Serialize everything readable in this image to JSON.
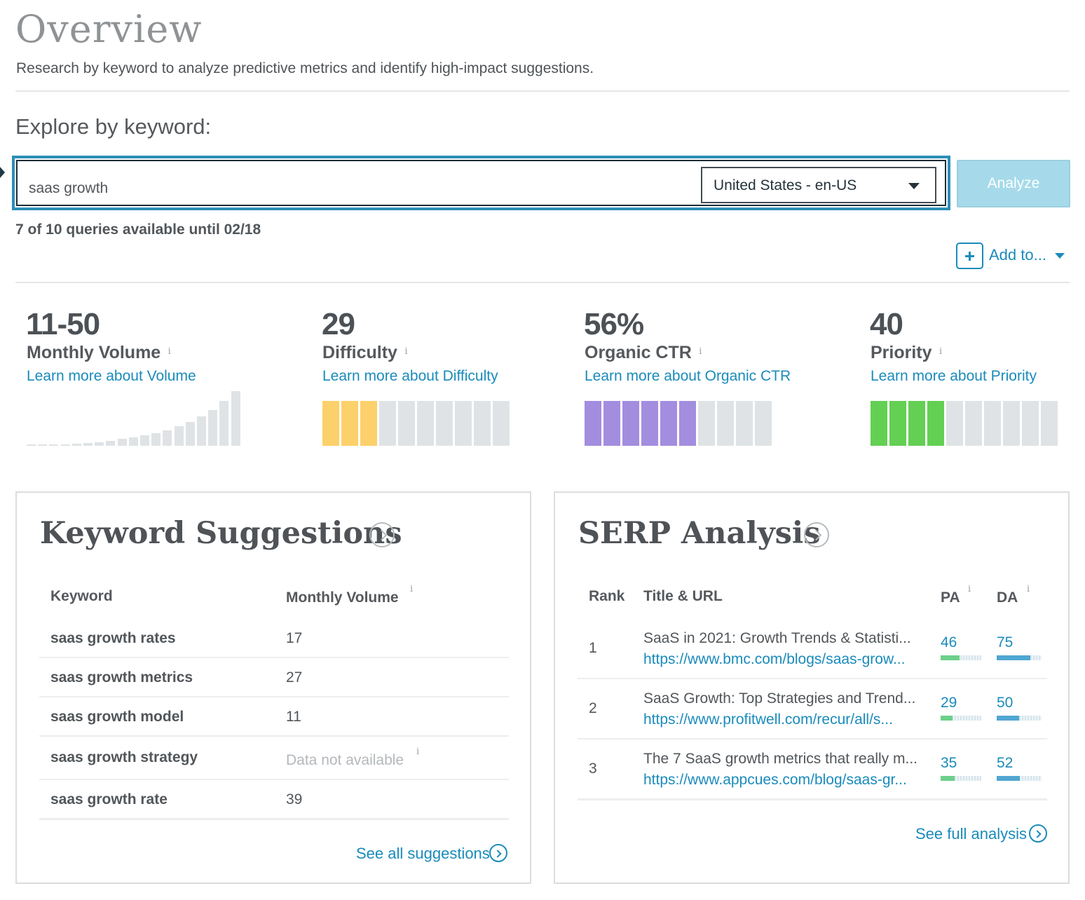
{
  "header": {
    "title": "Overview",
    "subtitle": "Research by keyword to analyze predictive metrics and identify high-impact suggestions."
  },
  "search": {
    "heading": "Explore by keyword:",
    "value": "saas growth",
    "locale": "United States - en-US",
    "analyze_label": "Analyze",
    "queries_text": "7 of 10 queries available until 02/18",
    "add_to_label": "Add to..."
  },
  "metrics": [
    {
      "value": "11-50",
      "label": "Monthly Volume",
      "info": "i",
      "link": "Learn more about Volume"
    },
    {
      "value": "29",
      "label": "Difficulty",
      "info": "i",
      "link": "Learn more about Difficulty",
      "filled": 3,
      "total": 10,
      "color": "#fcd06a"
    },
    {
      "value": "56%",
      "label": "Organic CTR",
      "info": "i",
      "link": "Learn more about Organic CTR",
      "filled": 6,
      "total": 10,
      "color": "#a38ddf"
    },
    {
      "value": "40",
      "label": "Priority",
      "info": "i",
      "link": "Learn more about Priority",
      "filled": 4,
      "total": 10,
      "color": "#63cf53"
    }
  ],
  "volume_histogram": [
    1,
    1,
    2,
    2,
    3,
    4,
    5,
    7,
    9,
    11,
    14,
    17,
    21,
    26,
    32,
    39,
    48,
    60,
    73
  ],
  "colors": {
    "accent": "#1a8bbb",
    "search_border": "#2c8fb6",
    "analyze_bg": "#a6daea",
    "bar_empty": "#dfe3e5",
    "pa_fill": "#6dd08a",
    "da_fill": "#4fa7d2"
  },
  "keyword_suggestions": {
    "title": "Keyword Suggestions",
    "col_keyword": "Keyword",
    "col_volume": "Monthly Volume",
    "info": "i",
    "rows": [
      {
        "keyword": "saas growth rates",
        "volume": "17"
      },
      {
        "keyword": "saas growth metrics",
        "volume": "27"
      },
      {
        "keyword": "saas growth model",
        "volume": "11"
      },
      {
        "keyword": "saas growth strategy",
        "volume": "Data not available"
      },
      {
        "keyword": "saas growth rate",
        "volume": "39"
      }
    ],
    "see_all": "See all suggestions"
  },
  "serp_analysis": {
    "title": "SERP Analysis",
    "col_rank": "Rank",
    "col_title": "Title & URL",
    "col_pa": "PA",
    "col_da": "DA",
    "info": "i",
    "rows": [
      {
        "rank": "1",
        "title": "SaaS in 2021: Growth Trends & Statisti...",
        "url": "https://www.bmc.com/blogs/saas-grow...",
        "pa": "46",
        "da": "75",
        "pa_fill": 0.46,
        "da_fill": 0.75
      },
      {
        "rank": "2",
        "title": "SaaS Growth: Top Strategies and Trend...",
        "url": "https://www.profitwell.com/recur/all/s...",
        "pa": "29",
        "da": "50",
        "pa_fill": 0.29,
        "da_fill": 0.5
      },
      {
        "rank": "3",
        "title": "The 7 SaaS growth metrics that really m...",
        "url": "https://www.appcues.com/blog/saas-gr...",
        "pa": "35",
        "da": "52",
        "pa_fill": 0.35,
        "da_fill": 0.52
      }
    ],
    "see_full": "See full analysis"
  }
}
